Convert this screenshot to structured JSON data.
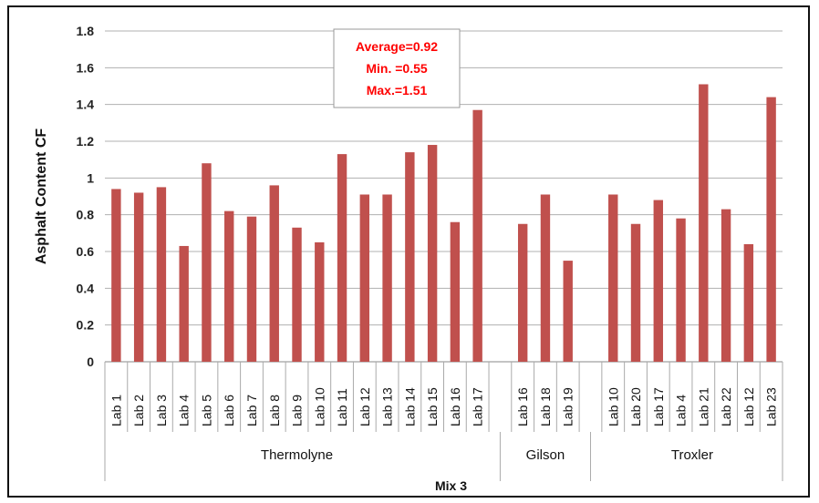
{
  "chart_data": {
    "type": "bar",
    "ylabel": "Asphalt Content CF",
    "xlabel": "Mix 3",
    "ylim": [
      0,
      1.8
    ],
    "ytick_step": 0.2,
    "yticks": [
      "0",
      "0.2",
      "0.4",
      "0.6",
      "0.8",
      "1",
      "1.2",
      "1.4",
      "1.6",
      "1.8"
    ],
    "grid": true,
    "bar_color": "#c0504d",
    "annotation": {
      "lines": [
        "Average=0.92",
        "Min. =0.55",
        "Max.=1.51"
      ],
      "color": "#ff0000"
    },
    "groups": [
      {
        "name": "Thermolyne",
        "categories": [
          "Lab 1",
          "Lab 2",
          "Lab 3",
          "Lab 4",
          "Lab 5",
          "Lab 6",
          "Lab 7",
          "Lab 8",
          "Lab 9",
          "Lab 10",
          "Lab 11",
          "Lab 12",
          "Lab 13",
          "Lab 14",
          "Lab 15",
          "Lab 16",
          "Lab 17"
        ],
        "values": [
          0.94,
          0.92,
          0.95,
          0.63,
          1.08,
          0.82,
          0.79,
          0.96,
          0.73,
          0.65,
          1.13,
          0.91,
          0.91,
          1.14,
          1.18,
          0.76,
          1.37
        ]
      },
      {
        "name": "Gilson",
        "categories": [
          "Lab 16",
          "Lab 18",
          "Lab 19"
        ],
        "values": [
          0.75,
          0.91,
          0.55
        ]
      },
      {
        "name": "Troxler",
        "categories": [
          "Lab 10",
          "Lab 20",
          "Lab 17",
          "Lab 4",
          "Lab 21",
          "Lab 22",
          "Lab 12",
          "Lab 23"
        ],
        "values": [
          0.91,
          0.75,
          0.88,
          0.78,
          1.51,
          0.83,
          0.64,
          1.44
        ]
      }
    ]
  }
}
